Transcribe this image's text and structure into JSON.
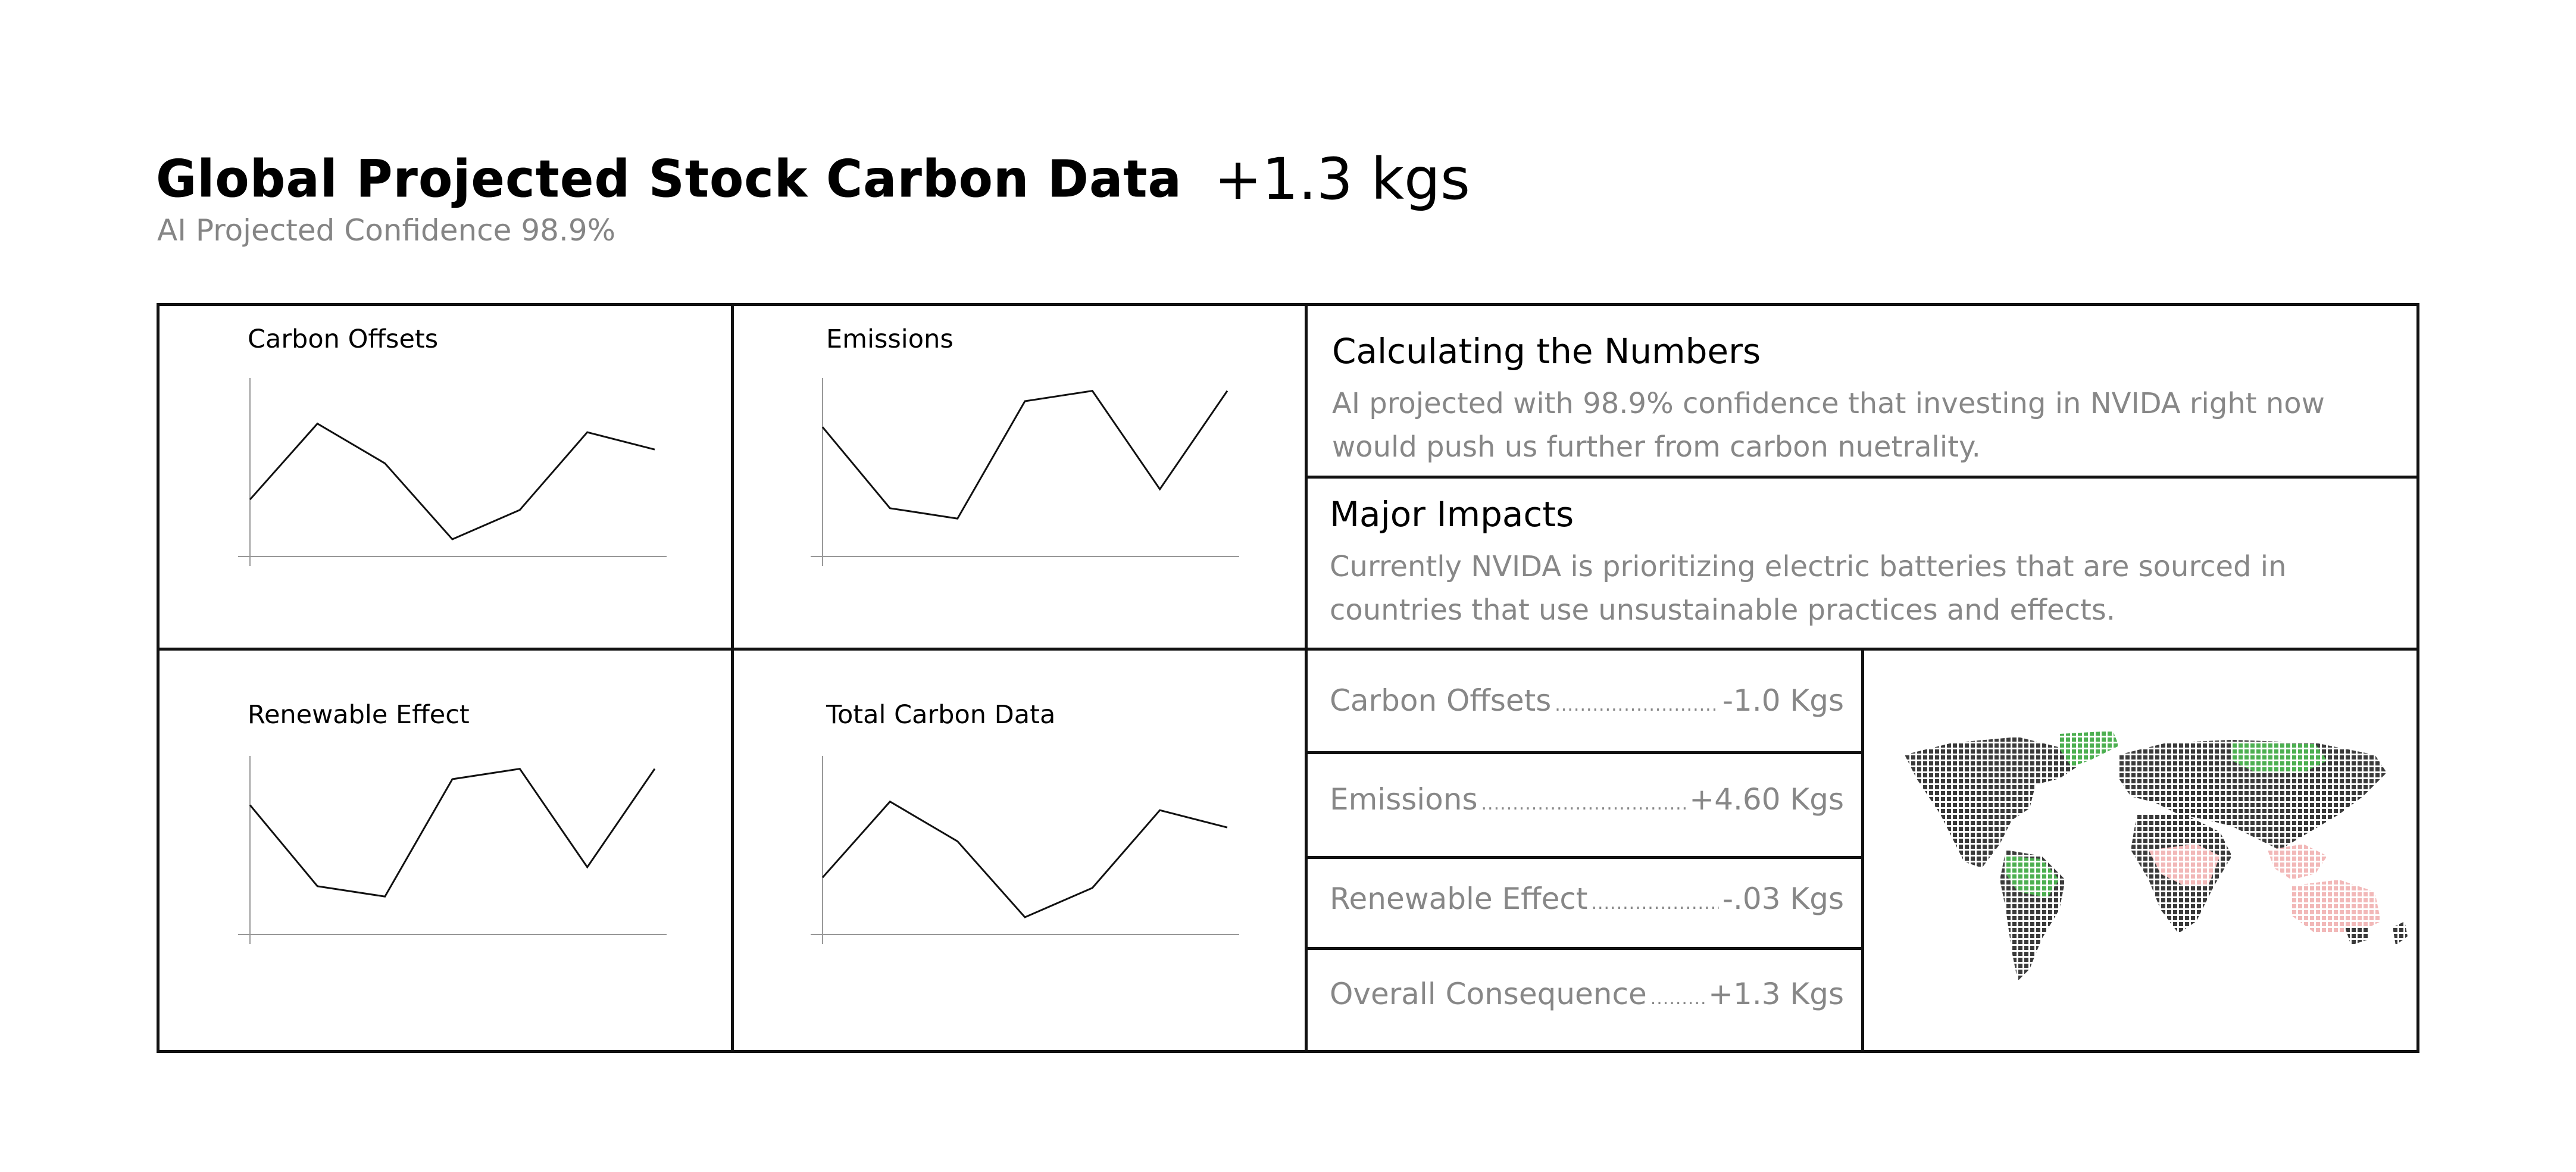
{
  "header": {
    "title": "Global Projected Stock Carbon Data",
    "title_value": "+1.3 kgs",
    "subtitle": "AI Projected Confidence 98.9%"
  },
  "charts": [
    {
      "label": "Carbon Offsets"
    },
    {
      "label": "Emissions"
    },
    {
      "label": "Renewable Effect"
    },
    {
      "label": "Total Carbon Data"
    }
  ],
  "chart_data": [
    {
      "type": "line",
      "title": "Carbon Offsets",
      "x": [
        0,
        1,
        2,
        3,
        4,
        5,
        6
      ],
      "values": [
        33,
        77,
        54,
        10,
        27,
        72,
        62
      ],
      "ylim": [
        0,
        100
      ],
      "grid": false
    },
    {
      "type": "line",
      "title": "Emissions",
      "x": [
        0,
        1,
        2,
        3,
        4,
        5,
        6
      ],
      "values": [
        75,
        28,
        22,
        90,
        96,
        39,
        96
      ],
      "ylim": [
        0,
        100
      ],
      "grid": false
    },
    {
      "type": "line",
      "title": "Renewable Effect",
      "x": [
        0,
        1,
        2,
        3,
        4,
        5,
        6
      ],
      "values": [
        75,
        28,
        22,
        90,
        96,
        39,
        96
      ],
      "ylim": [
        0,
        100
      ],
      "grid": false
    },
    {
      "type": "line",
      "title": "Total Carbon Data",
      "x": [
        0,
        1,
        2,
        3,
        4,
        5,
        6
      ],
      "values": [
        33,
        77,
        54,
        10,
        27,
        72,
        62
      ],
      "ylim": [
        0,
        100
      ],
      "grid": false
    }
  ],
  "info": {
    "calc_heading": "Calculating the Numbers",
    "calc_body": "AI projected with 98.9% confidence that investing in NVIDA right now would push us further from carbon nuetrality.",
    "impacts_heading": "Major Impacts",
    "impacts_body": "Currently NVIDA is prioritizing electric batteries that are sourced in countries that use unsustainable practices and effects."
  },
  "metrics": [
    {
      "label": "Carbon Offsets",
      "value": "-1.0 Kgs"
    },
    {
      "label": "Emissions",
      "value": "+4.60 Kgs"
    },
    {
      "label": "Renewable Effect",
      "value": "-.03 Kgs"
    },
    {
      "label": "Overall Consequence",
      "value": "+1.3 Kgs"
    }
  ],
  "map": {
    "icon": "dotted-world-map-icon",
    "colors": {
      "land": "#3a3a3a",
      "positive": "#4caf50",
      "negative": "#f2b8b8"
    }
  }
}
